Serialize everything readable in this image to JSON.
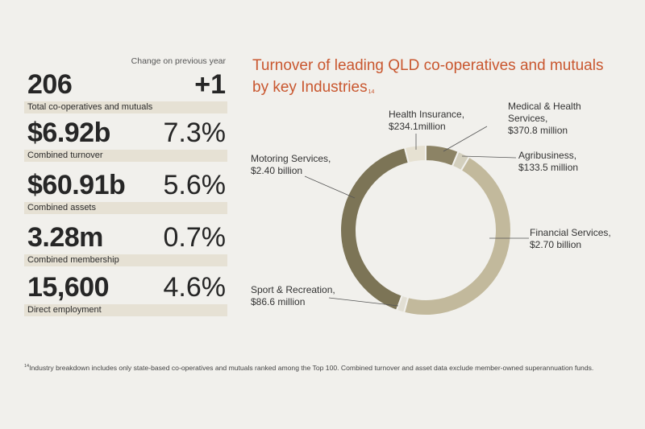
{
  "change_header": "Change on previous year",
  "stats": [
    {
      "value": "206",
      "change": "+1",
      "label": "Total co-operatives and mutuals"
    },
    {
      "value": "$6.92b",
      "change": "7.3%",
      "label": "Combined turnover"
    },
    {
      "value": "$60.91b",
      "change": "5.6%",
      "label": "Combined assets"
    },
    {
      "value": "3.28m",
      "change": "0.7%",
      "label": "Combined membership"
    },
    {
      "value": "15,600",
      "change": "4.6%",
      "label": "Direct employment"
    }
  ],
  "chart_title": "Turnover of leading QLD co-operatives and mutuals by key Industries",
  "chart_title_sup": "14",
  "chart_data": {
    "type": "pie",
    "title": "Turnover of leading QLD co-operatives and mutuals by key Industries",
    "units": "AUD",
    "slices": [
      {
        "name": "Medical & Health Services",
        "value_label": "$370.8 million",
        "value": 370.8,
        "color": "#8c8365"
      },
      {
        "name": "Agribusiness",
        "value_label": "$133.5 million",
        "value": 133.5,
        "color": "#d3cfbd"
      },
      {
        "name": "Financial Services",
        "value_label": "$2.70 billion",
        "value": 2700,
        "color": "#c2b99c"
      },
      {
        "name": "Sport & Recreation",
        "value_label": "$86.6 million",
        "value": 86.6,
        "color": "#e2dfd4"
      },
      {
        "name": "Motoring Services",
        "value_label": "$2.40 billion",
        "value": 2400,
        "color": "#7c7456"
      },
      {
        "name": "Health Insurance",
        "value_label": "$234.1million",
        "value": 234.1,
        "color": "#e6e1d2"
      }
    ]
  },
  "labels": {
    "medical_1": "Medical & Health",
    "medical_2": "Services,",
    "medical_3": "$370.8 million",
    "health_1": "Health Insurance,",
    "health_2": "$234.1million",
    "agri_1": "Agribusiness,",
    "agri_2": "$133.5 million",
    "motor_1": "Motoring Services,",
    "motor_2": "$2.40 billion",
    "fin_1": "Financial Services,",
    "fin_2": "$2.70 billion",
    "sport_1": "Sport & Recreation,",
    "sport_2": "$86.6 million"
  },
  "footnote_sup": "14",
  "footnote": "Industry breakdown includes only state-based co-operatives and mutuals ranked among the Top 100. Combined turnover and asset data exclude member-owned superannuation funds."
}
